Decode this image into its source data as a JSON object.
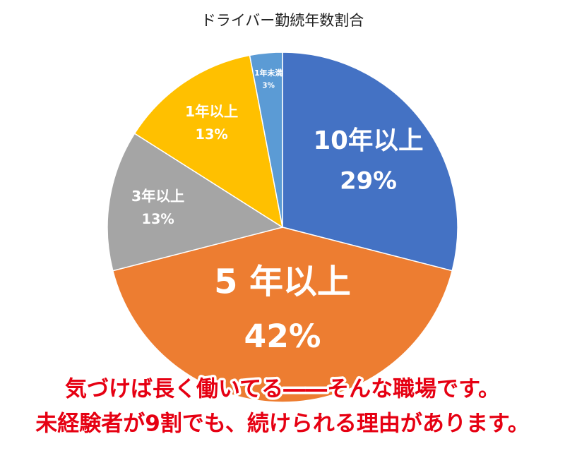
{
  "chart_data": {
    "type": "pie",
    "title": "ドライバー勤続年数割合",
    "categories": [
      "10年以上",
      "5 年以上",
      "3年以上",
      "1年以上",
      "1年未満"
    ],
    "values": [
      29,
      42,
      13,
      13,
      3
    ],
    "value_labels": [
      "29%",
      "42%",
      "13%",
      "13%",
      "3%"
    ],
    "colors": [
      "#4472c4",
      "#ed7d31",
      "#a5a5a5",
      "#ffc000",
      "#5b9bd5"
    ]
  },
  "caption": {
    "lines": [
      "気づけば長く働いてる――そんな職場です。",
      "未経験者が9割でも、続けられる理由があります。"
    ]
  }
}
